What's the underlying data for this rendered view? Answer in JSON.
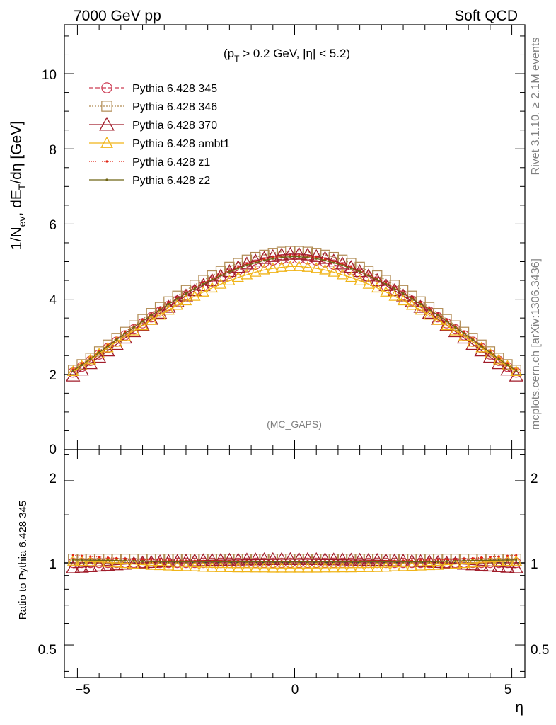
{
  "header": {
    "left": "7000 GeV pp",
    "right": "Soft QCD"
  },
  "annotation": {
    "cut_pre": "(p",
    "cut_sub": "T",
    "cut_post": " > 0.2 GeV, |η| < 5.2)",
    "analysis": "(MC_GAPS)"
  },
  "side_labels": {
    "rivet": "Rivet 3.1.10, ≥ 2.1M events",
    "source": "mcplots.cern.ch [arXiv:1306.3436]"
  },
  "axes": {
    "main_ylabel_parts": [
      "1/N",
      "ev",
      ", dE",
      "T",
      "/dη [GeV]"
    ],
    "ratio_ylabel": "Ratio to Pythia 6.428 345",
    "xlabel": "η",
    "main_yticks": [
      "0",
      "2",
      "4",
      "6",
      "8",
      "10"
    ],
    "ratio_yticks": [
      "0.5",
      "1",
      "2"
    ],
    "xticks": [
      "−5",
      "0",
      "5"
    ]
  },
  "colors": {
    "p345": "#cc3a52",
    "p346": "#b08a52",
    "p370": "#a01c2a",
    "ambt1": "#f0b418",
    "z1": "#e02414",
    "z2": "#6e6414"
  },
  "chart_data": [
    {
      "type": "line",
      "panel": "main",
      "xlim": [
        -5.3,
        5.3
      ],
      "ylim": [
        0,
        11.3
      ],
      "x": [
        -5.1,
        -4.9,
        -4.7,
        -4.5,
        -4.3,
        -4.1,
        -3.9,
        -3.7,
        -3.5,
        -3.3,
        -3.1,
        -2.9,
        -2.7,
        -2.5,
        -2.3,
        -2.1,
        -1.9,
        -1.7,
        -1.5,
        -1.3,
        -1.1,
        -0.9,
        -0.7,
        -0.5,
        -0.3,
        -0.1,
        0.1,
        0.3,
        0.5,
        0.7,
        0.9,
        1.1,
        1.3,
        1.5,
        1.7,
        1.9,
        2.1,
        2.3,
        2.5,
        2.7,
        2.9,
        3.1,
        3.3,
        3.5,
        3.7,
        3.9,
        4.1,
        4.3,
        4.5,
        4.7,
        4.9,
        5.1
      ],
      "series": [
        {
          "name": "Pythia 6.428 345",
          "key": "p345",
          "marker": "circle",
          "dash": "6,3",
          "values": [
            2.05,
            2.2,
            2.36,
            2.53,
            2.7,
            2.87,
            3.04,
            3.2,
            3.36,
            3.52,
            3.67,
            3.82,
            3.96,
            4.1,
            4.23,
            4.35,
            4.47,
            4.58,
            4.68,
            4.77,
            4.85,
            4.92,
            4.98,
            5.03,
            5.06,
            5.08,
            5.08,
            5.06,
            5.03,
            4.98,
            4.92,
            4.85,
            4.77,
            4.68,
            4.58,
            4.47,
            4.35,
            4.23,
            4.1,
            3.96,
            3.82,
            3.67,
            3.52,
            3.36,
            3.2,
            3.04,
            2.87,
            2.7,
            2.53,
            2.36,
            2.2,
            2.05
          ]
        },
        {
          "name": "Pythia 6.428 346",
          "key": "p346",
          "marker": "square",
          "dash": "2,2",
          "values": [
            2.12,
            2.27,
            2.44,
            2.61,
            2.79,
            2.96,
            3.13,
            3.3,
            3.47,
            3.63,
            3.79,
            3.94,
            4.09,
            4.24,
            4.38,
            4.51,
            4.63,
            4.75,
            4.86,
            4.96,
            5.05,
            5.12,
            5.18,
            5.23,
            5.26,
            5.28,
            5.28,
            5.26,
            5.23,
            5.18,
            5.12,
            5.05,
            4.96,
            4.86,
            4.75,
            4.63,
            4.51,
            4.38,
            4.24,
            4.09,
            3.94,
            3.79,
            3.63,
            3.47,
            3.3,
            3.13,
            2.96,
            2.79,
            2.61,
            2.44,
            2.27,
            2.12
          ]
        },
        {
          "name": "Pythia 6.428 370",
          "key": "p370",
          "marker": "triangle",
          "dash": "",
          "values": [
            1.96,
            2.12,
            2.29,
            2.46,
            2.63,
            2.8,
            2.97,
            3.14,
            3.31,
            3.47,
            3.63,
            3.79,
            3.94,
            4.09,
            4.23,
            4.37,
            4.5,
            4.62,
            4.74,
            4.85,
            4.94,
            5.02,
            5.09,
            5.14,
            5.18,
            5.2,
            5.2,
            5.18,
            5.14,
            5.09,
            5.02,
            4.94,
            4.85,
            4.74,
            4.62,
            4.5,
            4.37,
            4.23,
            4.09,
            3.94,
            3.79,
            3.63,
            3.47,
            3.31,
            3.14,
            2.97,
            2.8,
            2.63,
            2.46,
            2.29,
            2.12,
            1.96
          ]
        },
        {
          "name": "Pythia 6.428 ambt1",
          "key": "ambt1",
          "marker": "triangle-open",
          "dash": "",
          "values": [
            2.08,
            2.23,
            2.39,
            2.55,
            2.71,
            2.86,
            3.01,
            3.16,
            3.3,
            3.44,
            3.58,
            3.71,
            3.84,
            3.96,
            4.08,
            4.19,
            4.3,
            4.4,
            4.49,
            4.58,
            4.65,
            4.72,
            4.78,
            4.82,
            4.85,
            4.87,
            4.87,
            4.85,
            4.82,
            4.78,
            4.72,
            4.65,
            4.58,
            4.49,
            4.4,
            4.3,
            4.19,
            4.08,
            3.96,
            3.84,
            3.71,
            3.58,
            3.44,
            3.3,
            3.16,
            3.01,
            2.86,
            2.71,
            2.55,
            2.39,
            2.23,
            2.08
          ]
        },
        {
          "name": "Pythia 6.428 z1",
          "key": "z1",
          "marker": "dot",
          "dash": "1,2",
          "values": [
            2.13,
            2.28,
            2.44,
            2.61,
            2.78,
            2.95,
            3.12,
            3.28,
            3.44,
            3.6,
            3.75,
            3.9,
            4.04,
            4.18,
            4.31,
            4.43,
            4.55,
            4.66,
            4.76,
            4.85,
            4.93,
            5.0,
            5.06,
            5.11,
            5.14,
            5.16,
            5.16,
            5.14,
            5.11,
            5.06,
            5.0,
            4.93,
            4.85,
            4.76,
            4.66,
            4.55,
            4.43,
            4.31,
            4.18,
            4.04,
            3.9,
            3.75,
            3.6,
            3.44,
            3.28,
            3.12,
            2.95,
            2.78,
            2.61,
            2.44,
            2.28,
            2.13
          ]
        },
        {
          "name": "Pythia 6.428 z2",
          "key": "z2",
          "marker": "dot",
          "dash": "",
          "values": [
            2.1,
            2.25,
            2.41,
            2.58,
            2.75,
            2.92,
            3.09,
            3.25,
            3.41,
            3.57,
            3.72,
            3.87,
            4.01,
            4.15,
            4.28,
            4.4,
            4.52,
            4.63,
            4.73,
            4.82,
            4.9,
            4.97,
            5.03,
            5.08,
            5.11,
            5.13,
            5.13,
            5.11,
            5.08,
            5.03,
            4.97,
            4.9,
            4.82,
            4.73,
            4.63,
            4.52,
            4.4,
            4.28,
            4.15,
            4.01,
            3.87,
            3.72,
            3.57,
            3.41,
            3.25,
            3.09,
            2.92,
            2.75,
            2.58,
            2.41,
            2.25,
            2.1
          ]
        }
      ]
    },
    {
      "type": "line",
      "panel": "ratio",
      "yscale": "log",
      "xlim": [
        -5.3,
        5.3
      ],
      "ylim": [
        0.38,
        2.6
      ],
      "reference": 1.0,
      "x": [
        -5.1,
        -4.9,
        -4.7,
        -4.5,
        -4.3,
        -4.1,
        -3.9,
        -3.7,
        -3.5,
        -3.3,
        -3.1,
        -2.9,
        -2.7,
        -2.5,
        -2.3,
        -2.1,
        -1.9,
        -1.7,
        -1.5,
        -1.3,
        -1.1,
        -0.9,
        -0.7,
        -0.5,
        -0.3,
        -0.1,
        0.1,
        0.3,
        0.5,
        0.7,
        0.9,
        1.1,
        1.3,
        1.5,
        1.7,
        1.9,
        2.1,
        2.3,
        2.5,
        2.7,
        2.9,
        3.1,
        3.3,
        3.5,
        3.7,
        3.9,
        4.1,
        4.3,
        4.5,
        4.7,
        4.9,
        5.1
      ],
      "series": [
        {
          "name": "Pythia 6.428 345",
          "key": "p345",
          "marker": "circle",
          "dash": "6,3",
          "values": [
            1.0,
            1.0,
            1.0,
            1.0,
            1.0,
            1.0,
            1.0,
            1.0,
            1.0,
            1.0,
            1.0,
            1.0,
            1.0,
            1.0,
            1.0,
            1.0,
            1.0,
            1.0,
            1.0,
            1.0,
            1.0,
            1.0,
            1.0,
            1.0,
            1.0,
            1.0,
            1.0,
            1.0,
            1.0,
            1.0,
            1.0,
            1.0,
            1.0,
            1.0,
            1.0,
            1.0,
            1.0,
            1.0,
            1.0,
            1.0,
            1.0,
            1.0,
            1.0,
            1.0,
            1.0,
            1.0,
            1.0,
            1.0,
            1.0,
            1.0,
            1.0,
            1.0
          ]
        },
        {
          "name": "Pythia 6.428 346",
          "key": "p346",
          "marker": "square",
          "dash": "2,2",
          "values": [
            1.035,
            1.035,
            1.035,
            1.035,
            1.035,
            1.035,
            1.035,
            1.035,
            1.035,
            1.035,
            1.035,
            1.035,
            1.035,
            1.035,
            1.035,
            1.035,
            1.035,
            1.035,
            1.035,
            1.035,
            1.035,
            1.035,
            1.035,
            1.035,
            1.035,
            1.035,
            1.035,
            1.035,
            1.035,
            1.035,
            1.035,
            1.035,
            1.035,
            1.035,
            1.035,
            1.035,
            1.035,
            1.035,
            1.035,
            1.035,
            1.035,
            1.035,
            1.035,
            1.035,
            1.035,
            1.035,
            1.035,
            1.035,
            1.035,
            1.035,
            1.035,
            1.035
          ]
        },
        {
          "name": "Pythia 6.428 370",
          "key": "p370",
          "marker": "triangle",
          "dash": "",
          "values": [
            0.96,
            0.965,
            0.97,
            0.975,
            0.98,
            0.985,
            0.99,
            0.995,
            1.0,
            1.005,
            1.01,
            1.012,
            1.014,
            1.016,
            1.018,
            1.02,
            1.022,
            1.023,
            1.024,
            1.025,
            1.026,
            1.027,
            1.028,
            1.029,
            1.03,
            1.03,
            1.03,
            1.03,
            1.029,
            1.028,
            1.027,
            1.026,
            1.025,
            1.024,
            1.023,
            1.022,
            1.02,
            1.018,
            1.016,
            1.014,
            1.012,
            1.01,
            1.005,
            1.0,
            0.995,
            0.99,
            0.985,
            0.98,
            0.975,
            0.97,
            0.965,
            0.96
          ]
        },
        {
          "name": "Pythia 6.428 ambt1",
          "key": "ambt1",
          "marker": "triangle-open",
          "dash": "",
          "values": [
            1.015,
            1.013,
            1.011,
            1.008,
            1.005,
            1.0,
            0.995,
            0.99,
            0.985,
            0.98,
            0.978,
            0.975,
            0.972,
            0.97,
            0.968,
            0.965,
            0.963,
            0.962,
            0.961,
            0.96,
            0.96,
            0.959,
            0.959,
            0.958,
            0.958,
            0.958,
            0.958,
            0.958,
            0.958,
            0.959,
            0.959,
            0.96,
            0.96,
            0.961,
            0.962,
            0.963,
            0.965,
            0.968,
            0.97,
            0.972,
            0.975,
            0.978,
            0.98,
            0.985,
            0.99,
            0.995,
            1.0,
            1.005,
            1.008,
            1.011,
            1.013,
            1.015
          ]
        },
        {
          "name": "Pythia 6.428 z1",
          "key": "z1",
          "marker": "dot",
          "dash": "1,2",
          "values": [
            1.065,
            1.06,
            1.055,
            1.05,
            1.045,
            1.04,
            1.035,
            1.03,
            1.028,
            1.026,
            1.024,
            1.022,
            1.02,
            1.019,
            1.018,
            1.017,
            1.016,
            1.016,
            1.015,
            1.015,
            1.015,
            1.015,
            1.015,
            1.015,
            1.015,
            1.015,
            1.015,
            1.015,
            1.015,
            1.015,
            1.015,
            1.015,
            1.015,
            1.015,
            1.016,
            1.016,
            1.017,
            1.018,
            1.019,
            1.02,
            1.022,
            1.024,
            1.026,
            1.028,
            1.03,
            1.035,
            1.04,
            1.045,
            1.05,
            1.055,
            1.06,
            1.065
          ]
        },
        {
          "name": "Pythia 6.428 z2",
          "key": "z2",
          "marker": "dot",
          "dash": "",
          "values": [
            1.025,
            1.024,
            1.023,
            1.022,
            1.021,
            1.02,
            1.018,
            1.016,
            1.014,
            1.012,
            1.011,
            1.01,
            1.01,
            1.01,
            1.01,
            1.01,
            1.01,
            1.01,
            1.01,
            1.01,
            1.01,
            1.01,
            1.01,
            1.01,
            1.01,
            1.01,
            1.01,
            1.01,
            1.01,
            1.01,
            1.01,
            1.01,
            1.01,
            1.01,
            1.01,
            1.01,
            1.01,
            1.01,
            1.01,
            1.01,
            1.01,
            1.011,
            1.012,
            1.014,
            1.016,
            1.018,
            1.02,
            1.021,
            1.022,
            1.023,
            1.024,
            1.025
          ]
        }
      ]
    }
  ]
}
